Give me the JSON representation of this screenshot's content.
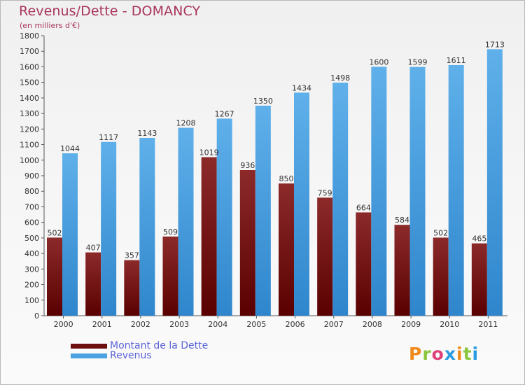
{
  "header": {
    "title": "Revenus/Dette - DOMANCY",
    "subtitle": "(en milliers d'€)"
  },
  "legend": {
    "items": [
      {
        "label": "Montant de la Dette",
        "color": "#6b0f0f"
      },
      {
        "label": "Revenus",
        "color": "#4aa2e2"
      }
    ]
  },
  "logo": {
    "text": "Proxiti",
    "colors": [
      "#f08a1d",
      "#8cc63e",
      "#e0407a",
      "#2a9be0",
      "#f08a1d",
      "#8cc63e",
      "#2a9be0"
    ]
  },
  "colors": {
    "debt_top": "#8c2a2a",
    "debt_bottom": "#5a0000",
    "rev_top": "#5fb0ea",
    "rev_bottom": "#2f86cc",
    "axis": "#555555",
    "grid": "#c8c8c8",
    "text": "#333333"
  },
  "chart_data": {
    "type": "bar",
    "categories": [
      "2000",
      "2001",
      "2002",
      "2003",
      "2004",
      "2005",
      "2006",
      "2007",
      "2008",
      "2009",
      "2010",
      "2011"
    ],
    "series": [
      {
        "name": "Montant de la Dette",
        "values": [
          502,
          407,
          357,
          509,
          1019,
          936,
          850,
          759,
          664,
          584,
          502,
          465
        ]
      },
      {
        "name": "Revenus",
        "values": [
          1044,
          1117,
          1143,
          1208,
          1267,
          1350,
          1434,
          1498,
          1600,
          1599,
          1611,
          1713
        ]
      }
    ],
    "ylim": [
      0,
      1800
    ],
    "yticks": [
      0,
      100,
      200,
      300,
      400,
      500,
      600,
      700,
      800,
      900,
      1000,
      1100,
      1200,
      1300,
      1400,
      1500,
      1600,
      1700,
      1800
    ],
    "grid": false,
    "legend_position": "bottom-left"
  }
}
